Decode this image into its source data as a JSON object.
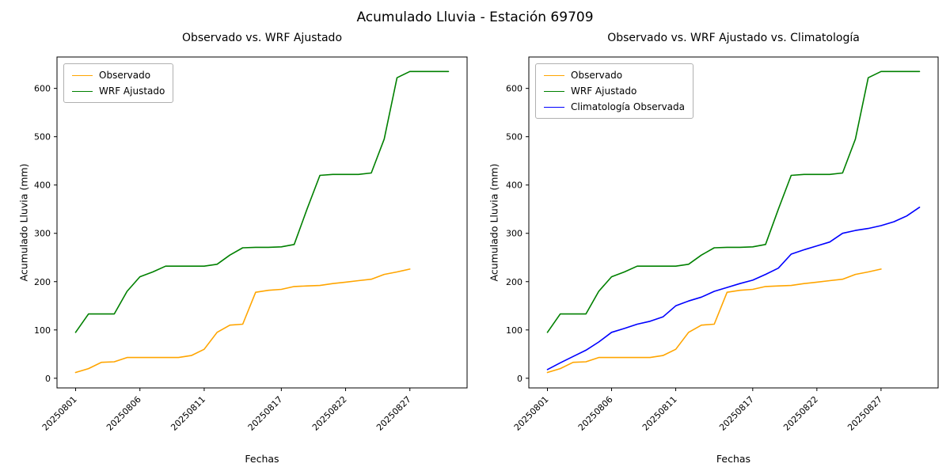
{
  "figure": {
    "title": "Acumulado Lluvia - Estación 69709"
  },
  "chart_data": [
    {
      "type": "line",
      "title": "Observado vs. WRF Ajustado",
      "xlabel": "Fechas",
      "ylabel": "Acumulado Lluvia (mm)",
      "ylim": [
        -20,
        665
      ],
      "yticks": [
        0,
        100,
        200,
        300,
        400,
        500,
        600
      ],
      "xtick_positions": [
        0,
        5,
        10,
        16,
        21,
        26
      ],
      "xtick_labels": [
        "20250801",
        "20250806",
        "20250811",
        "20250817",
        "20250822",
        "20250827"
      ],
      "grid": false,
      "legend_position": "upper left",
      "series": [
        {
          "name": "Observado",
          "color": "#ffa500",
          "values": [
            12,
            20,
            33,
            34,
            43,
            43,
            43,
            43,
            43,
            47,
            60,
            95,
            110,
            112,
            178,
            182,
            184,
            190,
            191,
            192,
            196,
            199,
            202,
            205,
            215,
            220,
            226
          ]
        },
        {
          "name": "WRF Ajustado",
          "color": "#008000",
          "values": [
            95,
            133,
            133,
            133,
            180,
            210,
            220,
            232,
            232,
            232,
            232,
            236,
            255,
            270,
            271,
            271,
            272,
            277,
            350,
            420,
            422,
            422,
            422,
            425,
            495,
            622,
            635,
            635,
            635,
            635
          ]
        }
      ]
    },
    {
      "type": "line",
      "title": "Observado vs. WRF Ajustado vs. Climatología",
      "xlabel": "Fechas",
      "ylabel": "Acumulado Lluvia (mm)",
      "ylim": [
        -20,
        665
      ],
      "yticks": [
        0,
        100,
        200,
        300,
        400,
        500,
        600
      ],
      "xtick_positions": [
        0,
        5,
        10,
        16,
        21,
        26
      ],
      "xtick_labels": [
        "20250801",
        "20250806",
        "20250811",
        "20250817",
        "20250822",
        "20250827"
      ],
      "grid": false,
      "legend_position": "upper left",
      "series": [
        {
          "name": "Observado",
          "color": "#ffa500",
          "values": [
            12,
            20,
            33,
            34,
            43,
            43,
            43,
            43,
            43,
            47,
            60,
            95,
            110,
            112,
            178,
            182,
            184,
            190,
            191,
            192,
            196,
            199,
            202,
            205,
            215,
            220,
            226
          ]
        },
        {
          "name": "WRF Ajustado",
          "color": "#008000",
          "values": [
            95,
            133,
            133,
            133,
            180,
            210,
            220,
            232,
            232,
            232,
            232,
            236,
            255,
            270,
            271,
            271,
            272,
            277,
            350,
            420,
            422,
            422,
            422,
            425,
            495,
            622,
            635,
            635,
            635,
            635
          ]
        },
        {
          "name": "Climatología Observada",
          "color": "#0000ff",
          "values": [
            18,
            32,
            45,
            58,
            75,
            95,
            103,
            112,
            118,
            127,
            150,
            160,
            168,
            180,
            188,
            196,
            203,
            215,
            228,
            257,
            266,
            274,
            282,
            300,
            306,
            310,
            316,
            324,
            336,
            354
          ]
        }
      ]
    }
  ]
}
